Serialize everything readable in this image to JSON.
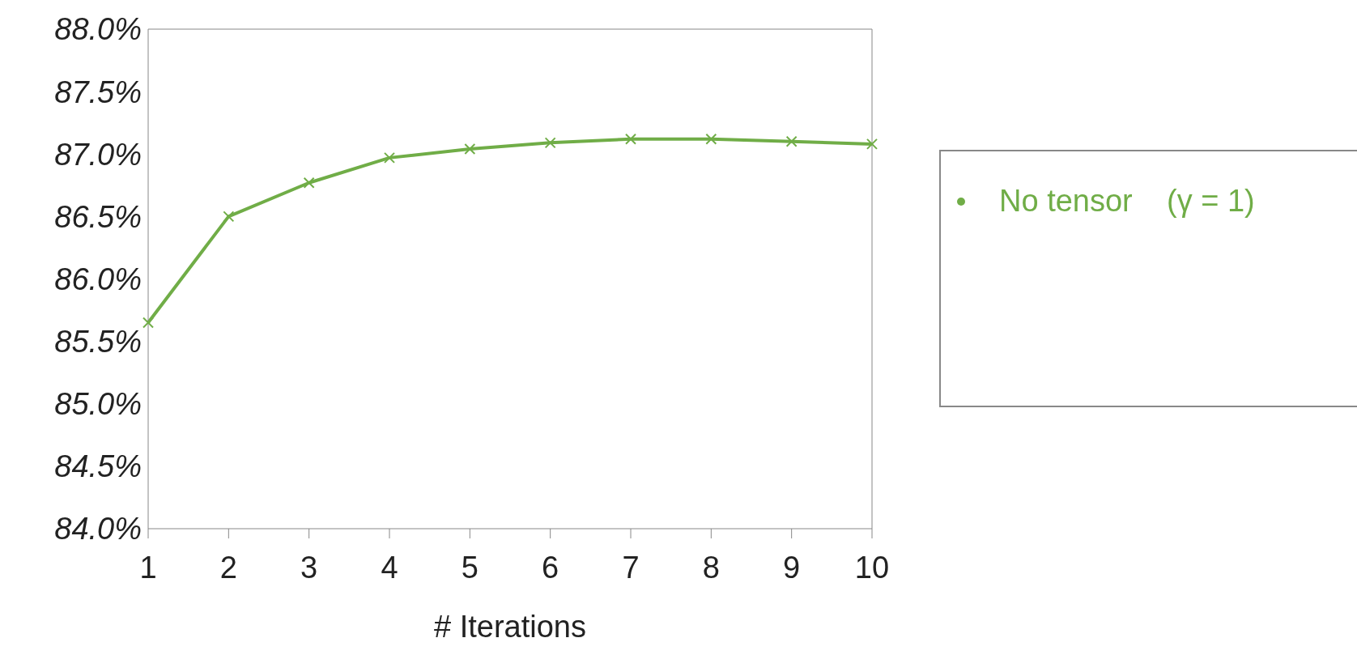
{
  "chart_data": {
    "type": "line",
    "xlabel": "# Iterations",
    "categories": [
      "1",
      "2",
      "3",
      "4",
      "5",
      "6",
      "7",
      "8",
      "9",
      "10"
    ],
    "series": [
      {
        "name": "No tensor    (γ = 1)",
        "color": "#70ad47",
        "values": [
          85.65,
          86.5,
          86.77,
          86.97,
          87.04,
          87.09,
          87.12,
          87.12,
          87.1,
          87.08
        ]
      }
    ],
    "ylim": [
      84,
      88
    ],
    "yticks": [
      {
        "value": 84,
        "label": "84.0%"
      },
      {
        "value": 84.5,
        "label": "84.5%"
      },
      {
        "value": 85,
        "label": "85.0%"
      },
      {
        "value": 85.5,
        "label": "85.5%"
      },
      {
        "value": 86,
        "label": "86.0%"
      },
      {
        "value": 86.5,
        "label": "86.5%"
      },
      {
        "value": 87,
        "label": "87.0%"
      },
      {
        "value": 87.5,
        "label": "87.5%"
      },
      {
        "value": 88,
        "label": "88.0%"
      }
    ],
    "grid": false,
    "legend": "right",
    "marker": "cross",
    "line_style": "solid"
  }
}
